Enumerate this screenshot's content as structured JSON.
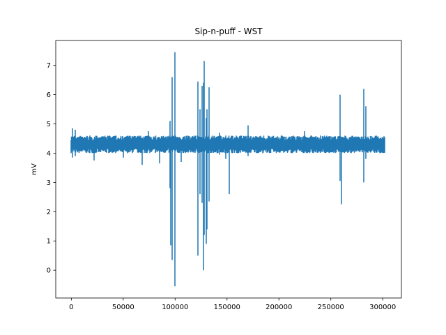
{
  "chart_data": {
    "type": "line",
    "title": "Sip-n-puff - WST",
    "xlabel": "",
    "ylabel": "mV",
    "xlim": [
      -15000,
      318000
    ],
    "ylim": [
      -0.95,
      7.85
    ],
    "x_ticks": [
      0,
      50000,
      100000,
      150000,
      200000,
      250000,
      300000
    ],
    "y_ticks": [
      0,
      1,
      2,
      3,
      4,
      5,
      6,
      7
    ],
    "grid": false,
    "series_color": "#1f77b4",
    "series": [
      {
        "name": "",
        "baseline": 4.3,
        "band": [
          4.05,
          4.55
        ],
        "x_range": [
          0,
          302000
        ],
        "excursions": [
          {
            "x": 1000,
            "min": 3.85,
            "max": 4.85
          },
          {
            "x": 4000,
            "min": 3.9,
            "max": 4.8
          },
          {
            "x": 22000,
            "min": 3.75,
            "max": 4.35
          },
          {
            "x": 50000,
            "min": 3.85,
            "max": 4.3
          },
          {
            "x": 68000,
            "min": 3.6,
            "max": 4.3
          },
          {
            "x": 74000,
            "min": 4.2,
            "max": 4.75
          },
          {
            "x": 85000,
            "min": 3.65,
            "max": 4.3
          },
          {
            "x": 95000,
            "min": 2.8,
            "max": 5.1
          },
          {
            "x": 96000,
            "min": 0.85,
            "max": 4.5
          },
          {
            "x": 97000,
            "min": 0.35,
            "max": 6.6
          },
          {
            "x": 100000,
            "min": -0.55,
            "max": 7.45
          },
          {
            "x": 106000,
            "min": 3.7,
            "max": 4.4
          },
          {
            "x": 122000,
            "min": 0.5,
            "max": 6.45
          },
          {
            "x": 124000,
            "min": 2.6,
            "max": 5.5
          },
          {
            "x": 126000,
            "min": 2.3,
            "max": 6.3
          },
          {
            "x": 127000,
            "min": 0.0,
            "max": 6.4
          },
          {
            "x": 128000,
            "min": 1.2,
            "max": 7.15
          },
          {
            "x": 130000,
            "min": 0.9,
            "max": 5.2
          },
          {
            "x": 131000,
            "min": 1.4,
            "max": 5.5
          },
          {
            "x": 133000,
            "min": 2.35,
            "max": 6.25
          },
          {
            "x": 143000,
            "min": 3.95,
            "max": 4.7
          },
          {
            "x": 149000,
            "min": 3.8,
            "max": 4.6
          },
          {
            "x": 152000,
            "min": 2.6,
            "max": 4.35
          },
          {
            "x": 170000,
            "min": 3.9,
            "max": 4.95
          },
          {
            "x": 225000,
            "min": 4.05,
            "max": 4.75
          },
          {
            "x": 259000,
            "min": 3.05,
            "max": 6.0
          },
          {
            "x": 260000,
            "min": 2.25,
            "max": 4.55
          },
          {
            "x": 282000,
            "min": 3.0,
            "max": 6.2
          },
          {
            "x": 284000,
            "min": 3.8,
            "max": 5.6
          }
        ]
      }
    ]
  }
}
